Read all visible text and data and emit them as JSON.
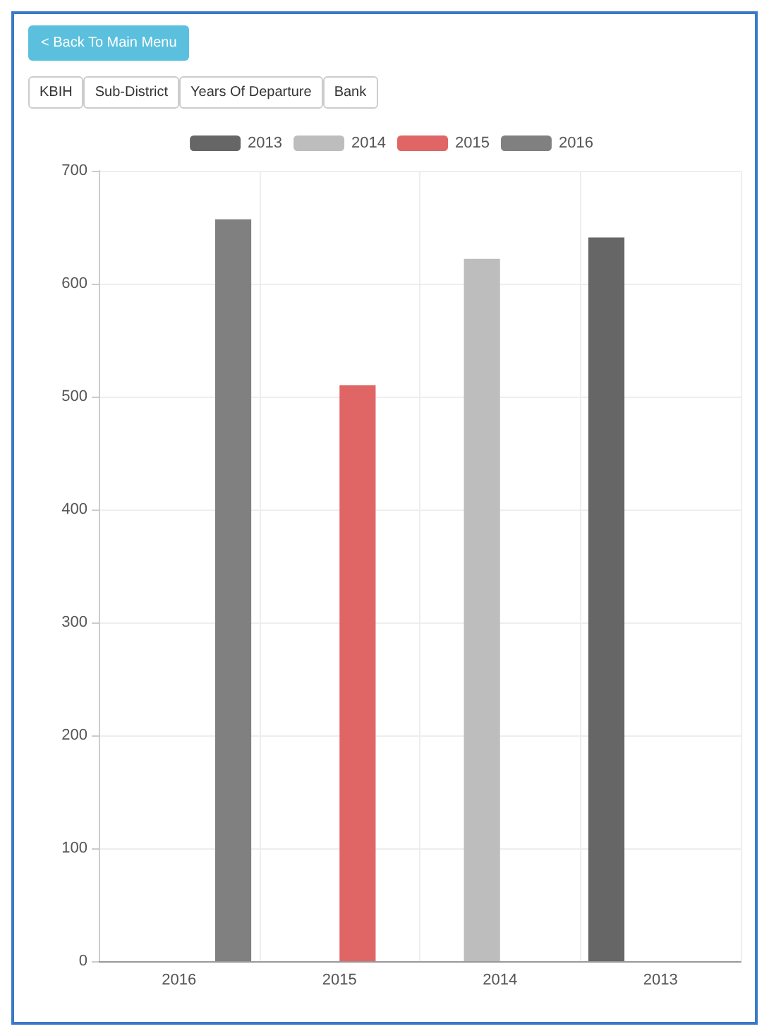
{
  "chart_data": {
    "type": "bar",
    "categories": [
      "2016",
      "2015",
      "2014",
      "2013"
    ],
    "series": [
      {
        "name": "2013",
        "color": "#666666",
        "values": [
          null,
          null,
          null,
          641
        ]
      },
      {
        "name": "2014",
        "color": "#bdbdbd",
        "values": [
          null,
          null,
          622,
          null
        ]
      },
      {
        "name": "2015",
        "color": "#e06666",
        "values": [
          null,
          510,
          null,
          null
        ]
      },
      {
        "name": "2016",
        "color": "#808080",
        "values": [
          657,
          null,
          null,
          null
        ]
      }
    ],
    "ylim": [
      0,
      700
    ],
    "yticks": [
      0,
      100,
      200,
      300,
      400,
      500,
      600,
      700
    ],
    "grid": true,
    "legend": "top",
    "annotations": [
      "< Back To Main Menu",
      "KBIH",
      "Sub-District",
      "Years Of Departure",
      "Bank"
    ]
  }
}
